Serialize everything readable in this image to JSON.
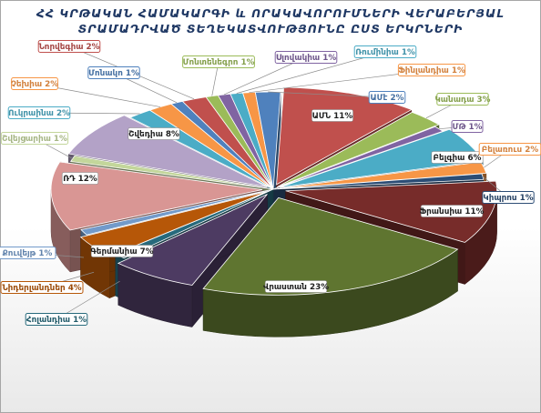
{
  "chart_data": {
    "type": "pie",
    "title_line1": "ՀՀ ԿՐԹԱԿԱՆ ՀԱՄԱԿԱՐԳԻ և ՈՐԱԿԱՎՈՐՈՒՄՆԵՐԻ ՎԵՐԱԲԵՐՅԱԼ",
    "title_line2": "ՏՐԱՄԱԴՐՎԱԾ ՏԵՂԵԿԱՏՎՈՒԹՅՈՒՆԸ ԸՍՏ ԵՐԿՐՆԵՐԻ",
    "unit": "%",
    "slices": [
      {
        "label": "ԱՄՆ",
        "value": 11,
        "color": "#c0504d"
      },
      {
        "label": "Կանադա",
        "value": 3,
        "color": "#9bbb59"
      },
      {
        "label": "ՄԹ",
        "value": 1,
        "color": "#8064a2"
      },
      {
        "label": "Բելգիա",
        "value": 6,
        "color": "#4bacc6"
      },
      {
        "label": "Բելառուս",
        "value": 2,
        "color": "#f79646"
      },
      {
        "label": "Կիպրոս",
        "value": 1,
        "color": "#2c4d75"
      },
      {
        "label": "Ֆրանսիա",
        "value": 11,
        "color": "#772c2a"
      },
      {
        "label": "Վրաստան",
        "value": 23,
        "color": "#5f7530"
      },
      {
        "label": "Գերմանիա",
        "value": 7,
        "color": "#4d3b62"
      },
      {
        "label": "Հոլանդիա",
        "value": 1,
        "color": "#276a7c"
      },
      {
        "label": "Նիդերլանդներ",
        "value": 4,
        "color": "#b65708"
      },
      {
        "label": "Քուվեյթ",
        "value": 1,
        "color": "#729aca"
      },
      {
        "label": "ՌԴ",
        "value": 12,
        "color": "#d99694"
      },
      {
        "label": "Շվեյցարիա",
        "value": 1,
        "color": "#c3d69b"
      },
      {
        "label": "Շվեդիա",
        "value": 8,
        "color": "#b3a2c7"
      },
      {
        "label": "Ուկրաինա",
        "value": 2,
        "color": "#4bacc6"
      },
      {
        "label": "Չեխիա",
        "value": 2,
        "color": "#f79646"
      },
      {
        "label": "Մոնակո",
        "value": 1,
        "color": "#4f81bd"
      },
      {
        "label": "Նորվեգիա",
        "value": 2,
        "color": "#c0504d"
      },
      {
        "label": "Մոնտենեգրո",
        "value": 1,
        "color": "#9bbb59"
      },
      {
        "label": "Սլովակիա",
        "value": 1,
        "color": "#8064a2"
      },
      {
        "label": "Ռումինիա",
        "value": 1,
        "color": "#4bacc6"
      },
      {
        "label": "Ֆինլանդիա",
        "value": 1,
        "color": "#f79646"
      },
      {
        "label": "ԱՄէ",
        "value": 2,
        "color": "#4f81bd"
      }
    ]
  }
}
